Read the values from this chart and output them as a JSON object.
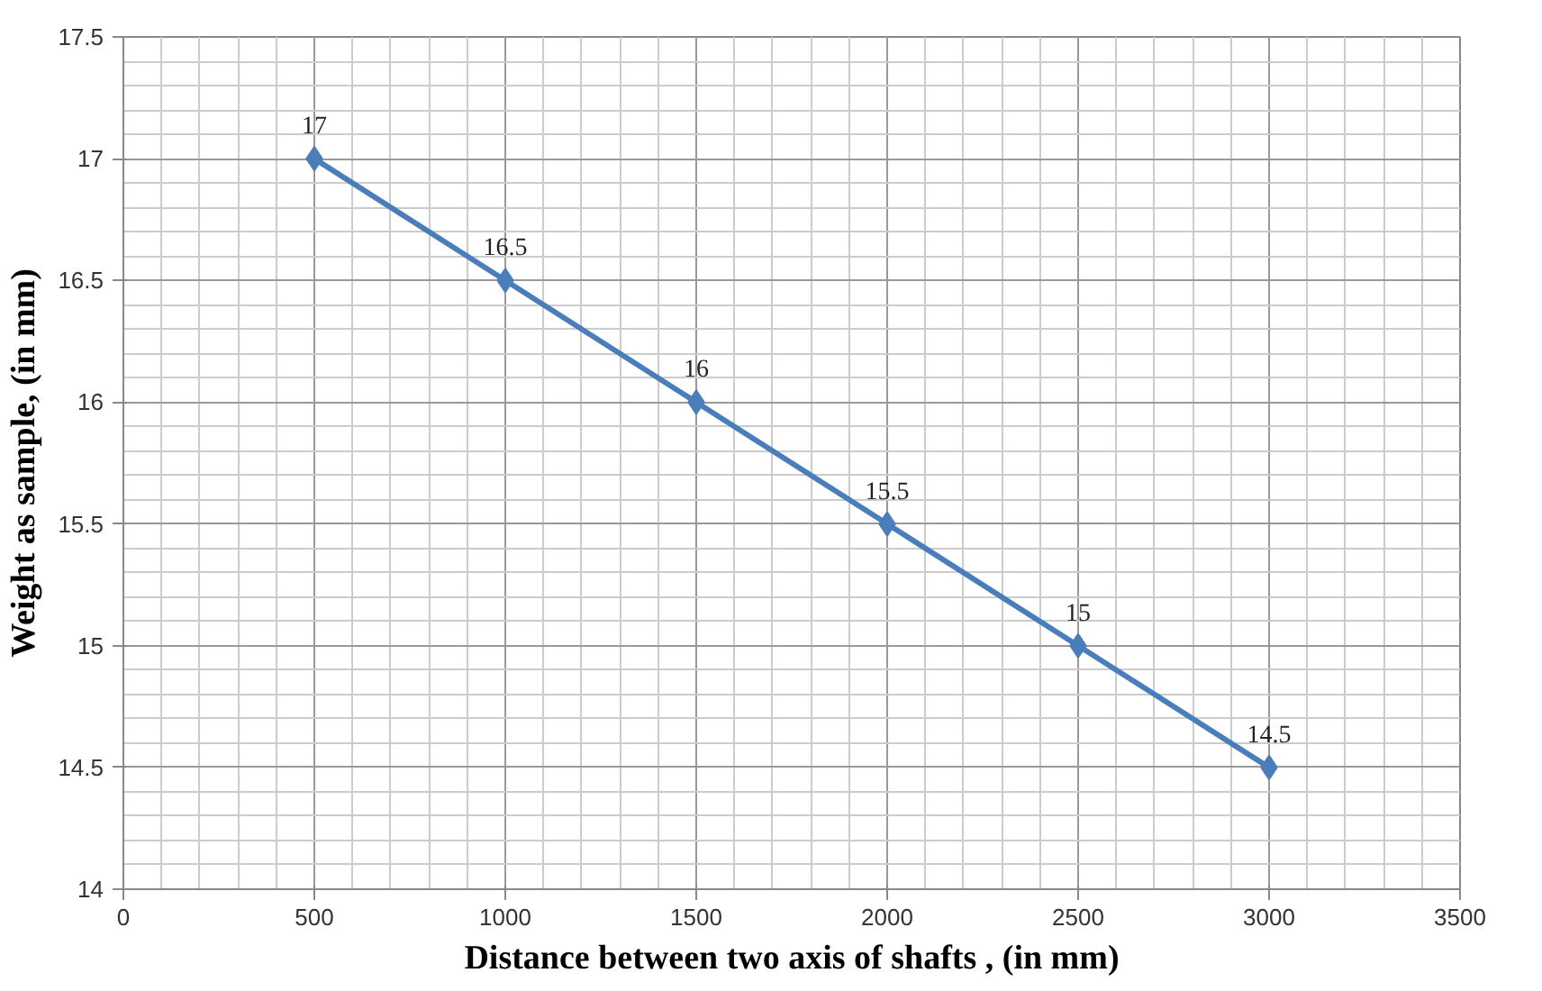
{
  "chart_data": {
    "type": "line",
    "xlabel": "Distance between two axis of shafts , (in mm)",
    "ylabel": "Weight as sample, (in mm)",
    "x": [
      500,
      1000,
      1500,
      2000,
      2500,
      3000
    ],
    "series": [
      {
        "color": "#4a7ebb",
        "values": [
          17,
          16.5,
          16,
          15.5,
          15,
          14.5
        ]
      }
    ],
    "xlim": [
      0,
      3500
    ],
    "xticks": [
      0,
      500,
      1000,
      1500,
      2000,
      2500,
      3000,
      3500
    ],
    "ylim": [
      14,
      17.5
    ],
    "yticks": [
      14,
      14.5,
      15,
      15.5,
      16,
      16.5,
      17,
      17.5
    ],
    "grid": true,
    "marker": "diamond",
    "line_style": "solid",
    "data_labels": true
  }
}
